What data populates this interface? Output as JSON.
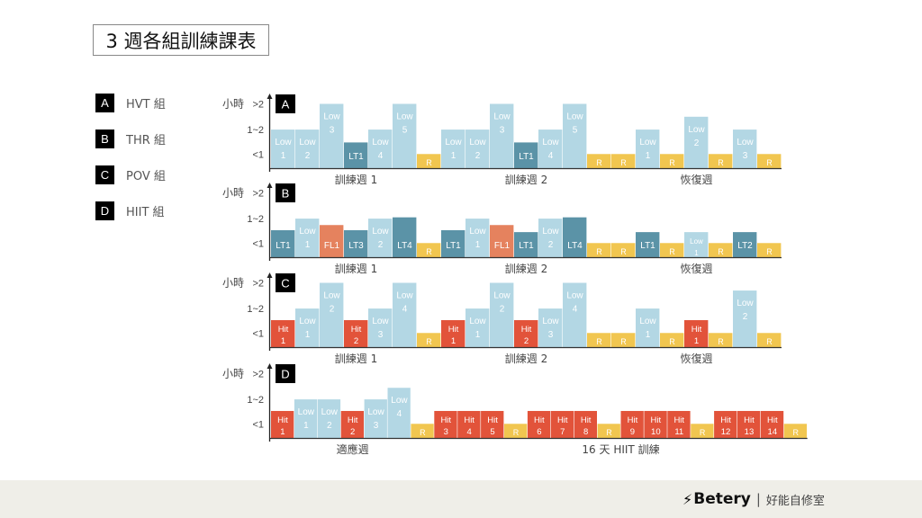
{
  "title": "3 週各組訓練課表",
  "legend": [
    {
      "letter": "A",
      "label": "HVT 組"
    },
    {
      "letter": "B",
      "label": "THR 組"
    },
    {
      "letter": "C",
      "label": "POV 組"
    },
    {
      "letter": "D",
      "label": "HIIT 組"
    }
  ],
  "footer": {
    "logo_icon": "lightning-bolt-icon",
    "brand": "Betery",
    "separator": "|",
    "subtitle": "好能自修室"
  },
  "chart_data": {
    "type": "bar",
    "y_unit_label": "小時",
    "y_ticks": [
      {
        "label": "<1",
        "value": 1.1
      },
      {
        "label": "1~2",
        "value": 3
      },
      {
        "label": ">2",
        "value": 5
      }
    ],
    "colors": {
      "Low": "#b3d7e4",
      "LT": "#5b93a7",
      "FL": "#e5825e",
      "Hit": "#e2533a",
      "R": "#f1c650"
    },
    "panels": [
      {
        "letter": "A",
        "groups": [
          {
            "label": "訓練週 1",
            "start": 0,
            "end": 6
          },
          {
            "label": "訓練週 2",
            "start": 7,
            "end": 13
          },
          {
            "label": "恢復週",
            "start": 14,
            "end": 20
          }
        ],
        "bars": [
          {
            "type": "Low",
            "label": "Low",
            "sub": "1",
            "value": 3
          },
          {
            "type": "Low",
            "label": "Low",
            "sub": "2",
            "value": 3
          },
          {
            "type": "Low",
            "label": "Low",
            "sub": "3",
            "value": 5
          },
          {
            "type": "LT",
            "label": "LT1",
            "sub": "",
            "value": 2
          },
          {
            "type": "Low",
            "label": "Low",
            "sub": "4",
            "value": 3
          },
          {
            "type": "Low",
            "label": "Low",
            "sub": "5",
            "value": 5
          },
          {
            "type": "R",
            "label": "R",
            "sub": "",
            "value": 1.1
          },
          {
            "type": "Low",
            "label": "Low",
            "sub": "1",
            "value": 3
          },
          {
            "type": "Low",
            "label": "Low",
            "sub": "2",
            "value": 3
          },
          {
            "type": "Low",
            "label": "Low",
            "sub": "3",
            "value": 5
          },
          {
            "type": "LT",
            "label": "LT1",
            "sub": "",
            "value": 2
          },
          {
            "type": "Low",
            "label": "Low",
            "sub": "4",
            "value": 3
          },
          {
            "type": "Low",
            "label": "Low",
            "sub": "5",
            "value": 5
          },
          {
            "type": "R",
            "label": "R",
            "sub": "",
            "value": 1.1
          },
          {
            "type": "R",
            "label": "R",
            "sub": "",
            "value": 1.1
          },
          {
            "type": "Low",
            "label": "Low",
            "sub": "1",
            "value": 3
          },
          {
            "type": "R",
            "label": "R",
            "sub": "",
            "value": 1.1
          },
          {
            "type": "Low",
            "label": "Low",
            "sub": "2",
            "value": 4
          },
          {
            "type": "R",
            "label": "R",
            "sub": "",
            "value": 1.1
          },
          {
            "type": "Low",
            "label": "Low",
            "sub": "3",
            "value": 3
          },
          {
            "type": "R",
            "label": "R",
            "sub": "",
            "value": 1.1
          }
        ]
      },
      {
        "letter": "B",
        "groups": [
          {
            "label": "訓練週 1",
            "start": 0,
            "end": 6
          },
          {
            "label": "訓練週 2",
            "start": 7,
            "end": 13
          },
          {
            "label": "恢復週",
            "start": 14,
            "end": 20
          }
        ],
        "bars": [
          {
            "type": "LT",
            "label": "LT1",
            "sub": "",
            "value": 2.1
          },
          {
            "type": "Low",
            "label": "Low",
            "sub": "1",
            "value": 3
          },
          {
            "type": "FL",
            "label": "FL1",
            "sub": "",
            "value": 2.5
          },
          {
            "type": "LT",
            "label": "LT3",
            "sub": "",
            "value": 2.1
          },
          {
            "type": "Low",
            "label": "Low",
            "sub": "2",
            "value": 3
          },
          {
            "type": "LT",
            "label": "LT4",
            "sub": "",
            "value": 3.1
          },
          {
            "type": "R",
            "label": "R",
            "sub": "",
            "value": 1.1
          },
          {
            "type": "LT",
            "label": "LT1",
            "sub": "",
            "value": 2.1
          },
          {
            "type": "Low",
            "label": "Low",
            "sub": "1",
            "value": 3
          },
          {
            "type": "FL",
            "label": "FL1",
            "sub": "",
            "value": 2.5
          },
          {
            "type": "LT",
            "label": "LT1",
            "sub": "",
            "value": 1.95
          },
          {
            "type": "Low",
            "label": "Low",
            "sub": "2",
            "value": 3
          },
          {
            "type": "LT",
            "label": "LT4",
            "sub": "",
            "value": 3.1
          },
          {
            "type": "R",
            "label": "R",
            "sub": "",
            "value": 1.1
          },
          {
            "type": "R",
            "label": "R",
            "sub": "",
            "value": 1.1
          },
          {
            "type": "LT",
            "label": "LT1",
            "sub": "",
            "value": 1.95
          },
          {
            "type": "R",
            "label": "R",
            "sub": "",
            "value": 1.1
          },
          {
            "type": "Low",
            "label": "Low",
            "sub": "1",
            "value": 1.95
          },
          {
            "type": "R",
            "label": "R",
            "sub": "",
            "value": 1.1
          },
          {
            "type": "LT",
            "label": "LT2",
            "sub": "",
            "value": 1.95
          },
          {
            "type": "R",
            "label": "R",
            "sub": "",
            "value": 1.1
          }
        ]
      },
      {
        "letter": "C",
        "groups": [
          {
            "label": "訓練週 1",
            "start": 0,
            "end": 6
          },
          {
            "label": "訓練週 2",
            "start": 7,
            "end": 13
          },
          {
            "label": "恢復週",
            "start": 14,
            "end": 20
          }
        ],
        "bars": [
          {
            "type": "Hit",
            "label": "Hit",
            "sub": "1",
            "value": 2.1
          },
          {
            "type": "Low",
            "label": "Low",
            "sub": "1",
            "value": 3
          },
          {
            "type": "Low",
            "label": "Low",
            "sub": "2",
            "value": 5
          },
          {
            "type": "Hit",
            "label": "Hit",
            "sub": "2",
            "value": 2.1
          },
          {
            "type": "Low",
            "label": "Low",
            "sub": "3",
            "value": 3
          },
          {
            "type": "Low",
            "label": "Low",
            "sub": "4",
            "value": 5
          },
          {
            "type": "R",
            "label": "R",
            "sub": "",
            "value": 1.1
          },
          {
            "type": "Hit",
            "label": "Hit",
            "sub": "1",
            "value": 2.1
          },
          {
            "type": "Low",
            "label": "Low",
            "sub": "1",
            "value": 3
          },
          {
            "type": "Low",
            "label": "Low",
            "sub": "2",
            "value": 5
          },
          {
            "type": "Hit",
            "label": "Hit",
            "sub": "2",
            "value": 2.1
          },
          {
            "type": "Low",
            "label": "Low",
            "sub": "3",
            "value": 3
          },
          {
            "type": "Low",
            "label": "Low",
            "sub": "4",
            "value": 5
          },
          {
            "type": "R",
            "label": "R",
            "sub": "",
            "value": 1.1
          },
          {
            "type": "R",
            "label": "R",
            "sub": "",
            "value": 1.1
          },
          {
            "type": "Low",
            "label": "Low",
            "sub": "1",
            "value": 3
          },
          {
            "type": "R",
            "label": "R",
            "sub": "",
            "value": 1.1
          },
          {
            "type": "Hit",
            "label": "Hit",
            "sub": "1",
            "value": 2.1
          },
          {
            "type": "R",
            "label": "R",
            "sub": "",
            "value": 1.1
          },
          {
            "type": "Low",
            "label": "Low",
            "sub": "2",
            "value": 4.4
          },
          {
            "type": "R",
            "label": "R",
            "sub": "",
            "value": 1.1
          }
        ]
      },
      {
        "letter": "D",
        "groups": [
          {
            "label": "適應週",
            "start": 0,
            "end": 6
          },
          {
            "label": "16 天 HIIT 訓練",
            "start": 7,
            "end": 22
          }
        ],
        "bars": [
          {
            "type": "Hit",
            "label": "Hit",
            "sub": "1",
            "value": 2.1
          },
          {
            "type": "Low",
            "label": "Low",
            "sub": "1",
            "value": 3
          },
          {
            "type": "Low",
            "label": "Low",
            "sub": "2",
            "value": 3
          },
          {
            "type": "Hit",
            "label": "Hit",
            "sub": "2",
            "value": 2.1
          },
          {
            "type": "Low",
            "label": "Low",
            "sub": "3",
            "value": 3
          },
          {
            "type": "Low",
            "label": "Low",
            "sub": "4",
            "value": 3.9
          },
          {
            "type": "R",
            "label": "R",
            "sub": "",
            "value": 1.1
          },
          {
            "type": "Hit",
            "label": "Hit",
            "sub": "3",
            "value": 2.1
          },
          {
            "type": "Hit",
            "label": "Hit",
            "sub": "4",
            "value": 2.1
          },
          {
            "type": "Hit",
            "label": "Hit",
            "sub": "5",
            "value": 2.1
          },
          {
            "type": "R",
            "label": "R",
            "sub": "",
            "value": 1.1
          },
          {
            "type": "Hit",
            "label": "Hit",
            "sub": "6",
            "value": 2.1
          },
          {
            "type": "Hit",
            "label": "Hit",
            "sub": "7",
            "value": 2.1
          },
          {
            "type": "Hit",
            "label": "Hit",
            "sub": "8",
            "value": 2.1
          },
          {
            "type": "R",
            "label": "R",
            "sub": "",
            "value": 1.1
          },
          {
            "type": "Hit",
            "label": "Hit",
            "sub": "9",
            "value": 2.1
          },
          {
            "type": "Hit",
            "label": "Hit",
            "sub": "10",
            "value": 2.1
          },
          {
            "type": "Hit",
            "label": "Hit",
            "sub": "11",
            "value": 2.1
          },
          {
            "type": "R",
            "label": "R",
            "sub": "",
            "value": 1.1
          },
          {
            "type": "Hit",
            "label": "Hit",
            "sub": "12",
            "value": 2.1
          },
          {
            "type": "Hit",
            "label": "Hit",
            "sub": "13",
            "value": 2.1
          },
          {
            "type": "Hit",
            "label": "Hit",
            "sub": "14",
            "value": 2.1
          },
          {
            "type": "R",
            "label": "R",
            "sub": "",
            "value": 1.1
          }
        ]
      }
    ]
  }
}
